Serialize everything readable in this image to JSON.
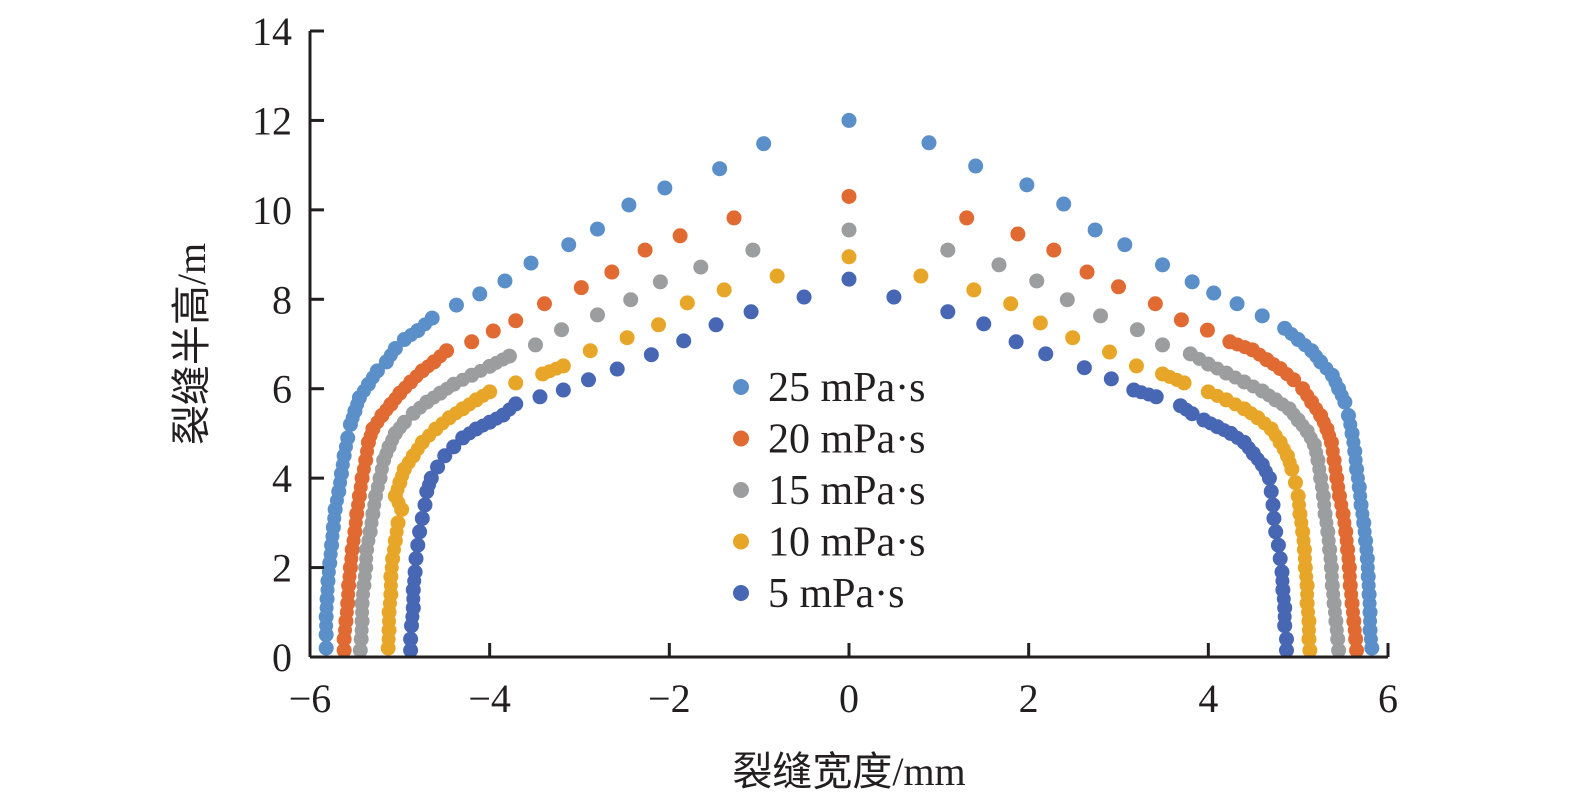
{
  "chart_data": {
    "type": "scatter",
    "title": "",
    "xlabel": "裂缝宽度/mm",
    "ylabel": "裂缝半高/m",
    "xlim": [
      -6,
      6
    ],
    "ylim": [
      0,
      14
    ],
    "xticks": [
      -6,
      -4,
      -2,
      0,
      2,
      4,
      6
    ],
    "yticks": [
      0,
      2,
      4,
      6,
      8,
      10,
      12,
      14
    ],
    "xtick_labels": [
      "−6",
      "−4",
      "−2",
      "0",
      "2",
      "4",
      "6"
    ],
    "ytick_labels": [
      "0",
      "2",
      "4",
      "6",
      "8",
      "10",
      "12",
      "14"
    ],
    "grid": false,
    "legend_position": "center",
    "series": [
      {
        "name": "25 mPa·s",
        "color": "#5b8fc9",
        "points": [
          [
            0,
            12
          ],
          [
            -0.95,
            11.48
          ],
          [
            -1.44,
            10.92
          ],
          [
            -2.05,
            10.49
          ],
          [
            -2.45,
            10.11
          ],
          [
            -2.8,
            9.57
          ],
          [
            -3.12,
            9.22
          ],
          [
            -3.54,
            8.81
          ],
          [
            -3.83,
            8.41
          ],
          [
            -4.11,
            8.12
          ],
          [
            -4.37,
            7.87
          ],
          [
            -4.64,
            7.58
          ],
          [
            -4.8,
            7.3
          ],
          [
            -4.95,
            7.1
          ],
          [
            -5.05,
            6.9
          ],
          [
            -5.15,
            6.6
          ],
          [
            -5.25,
            6.4
          ],
          [
            -5.35,
            6.1
          ],
          [
            -5.45,
            5.8
          ],
          [
            -5.5,
            5.5
          ],
          [
            -5.55,
            5.2
          ],
          [
            -5.58,
            4.9
          ],
          [
            -5.62,
            4.5
          ],
          [
            -5.65,
            4.1
          ],
          [
            -5.68,
            3.7
          ],
          [
            -5.72,
            3.3
          ],
          [
            -5.74,
            2.9
          ],
          [
            -5.76,
            2.5
          ],
          [
            -5.78,
            2.1
          ],
          [
            -5.8,
            1.7
          ],
          [
            -5.81,
            1.3
          ],
          [
            -5.82,
            0.9
          ],
          [
            -5.82,
            0.5
          ],
          [
            -5.82,
            0.2
          ],
          [
            0.89,
            11.5
          ],
          [
            1.41,
            10.98
          ],
          [
            1.98,
            10.56
          ],
          [
            2.39,
            10.13
          ],
          [
            2.74,
            9.55
          ],
          [
            3.07,
            9.22
          ],
          [
            3.49,
            8.77
          ],
          [
            3.82,
            8.39
          ],
          [
            4.06,
            8.14
          ],
          [
            4.32,
            7.9
          ],
          [
            4.6,
            7.63
          ],
          [
            4.85,
            7.35
          ],
          [
            5.0,
            7.1
          ],
          [
            5.15,
            6.85
          ],
          [
            5.25,
            6.6
          ],
          [
            5.38,
            6.3
          ],
          [
            5.45,
            6.0
          ],
          [
            5.52,
            5.7
          ],
          [
            5.56,
            5.4
          ],
          [
            5.6,
            5.0
          ],
          [
            5.63,
            4.6
          ],
          [
            5.65,
            4.2
          ],
          [
            5.68,
            3.8
          ],
          [
            5.7,
            3.4
          ],
          [
            5.73,
            3.0
          ],
          [
            5.75,
            2.6
          ],
          [
            5.77,
            2.2
          ],
          [
            5.78,
            1.8
          ],
          [
            5.79,
            1.4
          ],
          [
            5.8,
            1.0
          ],
          [
            5.8,
            0.6
          ],
          [
            5.82,
            0.2
          ]
        ]
      },
      {
        "name": "20 mPa·s",
        "color": "#e06a32",
        "points": [
          [
            0,
            10.3
          ],
          [
            -1.28,
            9.82
          ],
          [
            -1.88,
            9.42
          ],
          [
            -2.27,
            9.1
          ],
          [
            -2.64,
            8.61
          ],
          [
            -2.98,
            8.26
          ],
          [
            -3.39,
            7.9
          ],
          [
            -3.71,
            7.52
          ],
          [
            -3.96,
            7.29
          ],
          [
            -4.2,
            7.05
          ],
          [
            -4.48,
            6.85
          ],
          [
            -4.62,
            6.6
          ],
          [
            -4.75,
            6.4
          ],
          [
            -4.88,
            6.15
          ],
          [
            -5.0,
            5.9
          ],
          [
            -5.1,
            5.65
          ],
          [
            -5.2,
            5.4
          ],
          [
            -5.3,
            5.1
          ],
          [
            -5.35,
            4.8
          ],
          [
            -5.38,
            4.4
          ],
          [
            -5.42,
            4.0
          ],
          [
            -5.45,
            3.6
          ],
          [
            -5.48,
            3.2
          ],
          [
            -5.5,
            2.8
          ],
          [
            -5.53,
            2.4
          ],
          [
            -5.55,
            2.0
          ],
          [
            -5.57,
            1.6
          ],
          [
            -5.58,
            1.2
          ],
          [
            -5.6,
            0.8
          ],
          [
            -5.62,
            0.4
          ],
          [
            -5.62,
            0.15
          ],
          [
            1.31,
            9.82
          ],
          [
            1.88,
            9.46
          ],
          [
            2.28,
            9.1
          ],
          [
            2.65,
            8.61
          ],
          [
            3.0,
            8.28
          ],
          [
            3.41,
            7.9
          ],
          [
            3.7,
            7.54
          ],
          [
            3.99,
            7.31
          ],
          [
            4.24,
            7.05
          ],
          [
            4.49,
            6.87
          ],
          [
            4.65,
            6.65
          ],
          [
            4.8,
            6.45
          ],
          [
            4.95,
            6.2
          ],
          [
            5.05,
            6.0
          ],
          [
            5.15,
            5.7
          ],
          [
            5.25,
            5.4
          ],
          [
            5.32,
            5.1
          ],
          [
            5.37,
            4.8
          ],
          [
            5.4,
            4.4
          ],
          [
            5.43,
            4.0
          ],
          [
            5.46,
            3.6
          ],
          [
            5.5,
            3.2
          ],
          [
            5.53,
            2.8
          ],
          [
            5.55,
            2.4
          ],
          [
            5.57,
            2.0
          ],
          [
            5.58,
            1.6
          ],
          [
            5.6,
            1.2
          ],
          [
            5.62,
            0.8
          ],
          [
            5.64,
            0.4
          ],
          [
            5.65,
            0.15
          ]
        ]
      },
      {
        "name": "15 mPa·s",
        "color": "#9c9d9f",
        "points": [
          [
            0,
            9.55
          ],
          [
            -1.07,
            9.1
          ],
          [
            -1.65,
            8.72
          ],
          [
            -2.1,
            8.39
          ],
          [
            -2.43,
            7.99
          ],
          [
            -2.8,
            7.65
          ],
          [
            -3.2,
            7.32
          ],
          [
            -3.49,
            6.98
          ],
          [
            -3.78,
            6.73
          ],
          [
            -4.0,
            6.5
          ],
          [
            -4.2,
            6.3
          ],
          [
            -4.4,
            6.1
          ],
          [
            -4.55,
            5.9
          ],
          [
            -4.7,
            5.7
          ],
          [
            -4.85,
            5.45
          ],
          [
            -4.95,
            5.25
          ],
          [
            -5.05,
            5.0
          ],
          [
            -5.12,
            4.7
          ],
          [
            -5.18,
            4.4
          ],
          [
            -5.22,
            4.0
          ],
          [
            -5.27,
            3.6
          ],
          [
            -5.3,
            3.2
          ],
          [
            -5.33,
            2.8
          ],
          [
            -5.37,
            2.4
          ],
          [
            -5.38,
            2.0
          ],
          [
            -5.4,
            1.6
          ],
          [
            -5.42,
            1.2
          ],
          [
            -5.42,
            0.8
          ],
          [
            -5.43,
            0.4
          ],
          [
            -5.44,
            0.15
          ],
          [
            1.1,
            9.1
          ],
          [
            1.67,
            8.77
          ],
          [
            2.09,
            8.41
          ],
          [
            2.43,
            7.99
          ],
          [
            2.8,
            7.63
          ],
          [
            3.21,
            7.32
          ],
          [
            3.49,
            6.98
          ],
          [
            3.8,
            6.78
          ],
          [
            4.0,
            6.55
          ],
          [
            4.2,
            6.35
          ],
          [
            4.4,
            6.15
          ],
          [
            4.6,
            5.95
          ],
          [
            4.75,
            5.75
          ],
          [
            4.9,
            5.55
          ],
          [
            5.0,
            5.3
          ],
          [
            5.1,
            5.05
          ],
          [
            5.18,
            4.75
          ],
          [
            5.22,
            4.4
          ],
          [
            5.25,
            4.0
          ],
          [
            5.28,
            3.6
          ],
          [
            5.3,
            3.2
          ],
          [
            5.33,
            2.8
          ],
          [
            5.35,
            2.4
          ],
          [
            5.37,
            2.0
          ],
          [
            5.38,
            1.6
          ],
          [
            5.4,
            1.2
          ],
          [
            5.42,
            0.8
          ],
          [
            5.44,
            0.4
          ],
          [
            5.45,
            0.15
          ]
        ]
      },
      {
        "name": "10 mPa·s",
        "color": "#e8a628",
        "points": [
          [
            0,
            8.95
          ],
          [
            -0.8,
            8.52
          ],
          [
            -1.39,
            8.21
          ],
          [
            -1.8,
            7.92
          ],
          [
            -2.12,
            7.43
          ],
          [
            -2.47,
            7.14
          ],
          [
            -2.88,
            6.85
          ],
          [
            -3.18,
            6.51
          ],
          [
            -3.41,
            6.33
          ],
          [
            -3.71,
            6.13
          ],
          [
            -4.0,
            5.93
          ],
          [
            -4.15,
            5.75
          ],
          [
            -4.3,
            5.55
          ],
          [
            -4.45,
            5.35
          ],
          [
            -4.6,
            5.1
          ],
          [
            -4.75,
            4.8
          ],
          [
            -4.85,
            4.5
          ],
          [
            -4.95,
            4.2
          ],
          [
            -5.0,
            3.9
          ],
          [
            -5.05,
            3.6
          ],
          [
            -4.98,
            3.3
          ],
          [
            -5.02,
            3.0
          ],
          [
            -5.05,
            2.6
          ],
          [
            -5.08,
            2.2
          ],
          [
            -5.1,
            1.8
          ],
          [
            -5.1,
            1.4
          ],
          [
            -5.12,
            1.0
          ],
          [
            -5.12,
            0.6
          ],
          [
            -5.13,
            0.2
          ],
          [
            0.8,
            8.52
          ],
          [
            1.39,
            8.21
          ],
          [
            1.8,
            7.9
          ],
          [
            2.13,
            7.47
          ],
          [
            2.49,
            7.14
          ],
          [
            2.9,
            6.82
          ],
          [
            3.2,
            6.51
          ],
          [
            3.49,
            6.33
          ],
          [
            3.73,
            6.13
          ],
          [
            4.0,
            5.93
          ],
          [
            4.2,
            5.75
          ],
          [
            4.4,
            5.55
          ],
          [
            4.55,
            5.35
          ],
          [
            4.7,
            5.1
          ],
          [
            4.8,
            4.8
          ],
          [
            4.88,
            4.5
          ],
          [
            4.93,
            4.2
          ],
          [
            4.97,
            3.9
          ],
          [
            5.0,
            3.6
          ],
          [
            5.02,
            3.2
          ],
          [
            5.05,
            2.8
          ],
          [
            5.07,
            2.4
          ],
          [
            5.08,
            2.0
          ],
          [
            5.1,
            1.6
          ],
          [
            5.1,
            1.2
          ],
          [
            5.12,
            0.8
          ],
          [
            5.12,
            0.4
          ],
          [
            5.13,
            0.15
          ]
        ]
      },
      {
        "name": "5 mPa·s",
        "color": "#4766b3",
        "points": [
          [
            0,
            8.45
          ],
          [
            -0.5,
            8.05
          ],
          [
            -1.09,
            7.72
          ],
          [
            -1.48,
            7.43
          ],
          [
            -1.84,
            7.07
          ],
          [
            -2.2,
            6.76
          ],
          [
            -2.58,
            6.44
          ],
          [
            -2.9,
            6.2
          ],
          [
            -3.18,
            5.97
          ],
          [
            -3.44,
            5.82
          ],
          [
            -3.71,
            5.66
          ],
          [
            -3.85,
            5.41
          ],
          [
            -4.0,
            5.25
          ],
          [
            -4.15,
            5.1
          ],
          [
            -4.3,
            4.9
          ],
          [
            -4.4,
            4.7
          ],
          [
            -4.5,
            4.5
          ],
          [
            -4.58,
            4.25
          ],
          [
            -4.65,
            4.0
          ],
          [
            -4.7,
            3.7
          ],
          [
            -4.72,
            3.4
          ],
          [
            -4.75,
            3.1
          ],
          [
            -4.78,
            2.8
          ],
          [
            -4.8,
            2.5
          ],
          [
            -4.82,
            2.2
          ],
          [
            -4.83,
            1.9
          ],
          [
            -4.85,
            1.5
          ],
          [
            -4.85,
            1.1
          ],
          [
            -4.87,
            0.7
          ],
          [
            -4.88,
            0.4
          ],
          [
            -4.88,
            0.15
          ],
          [
            0.5,
            8.05
          ],
          [
            1.1,
            7.72
          ],
          [
            1.5,
            7.45
          ],
          [
            1.86,
            7.05
          ],
          [
            2.19,
            6.78
          ],
          [
            2.62,
            6.47
          ],
          [
            2.92,
            6.22
          ],
          [
            3.17,
            5.97
          ],
          [
            3.42,
            5.82
          ],
          [
            3.69,
            5.62
          ],
          [
            3.82,
            5.44
          ],
          [
            3.95,
            5.3
          ],
          [
            4.1,
            5.15
          ],
          [
            4.25,
            5.0
          ],
          [
            4.4,
            4.8
          ],
          [
            4.5,
            4.55
          ],
          [
            4.6,
            4.3
          ],
          [
            4.68,
            4.0
          ],
          [
            4.7,
            3.7
          ],
          [
            4.72,
            3.4
          ],
          [
            4.73,
            3.1
          ],
          [
            4.75,
            2.8
          ],
          [
            4.78,
            2.5
          ],
          [
            4.8,
            2.2
          ],
          [
            4.82,
            1.9
          ],
          [
            4.83,
            1.5
          ],
          [
            4.85,
            1.1
          ],
          [
            4.85,
            0.7
          ],
          [
            4.87,
            0.4
          ],
          [
            4.87,
            0.15
          ]
        ]
      }
    ]
  }
}
